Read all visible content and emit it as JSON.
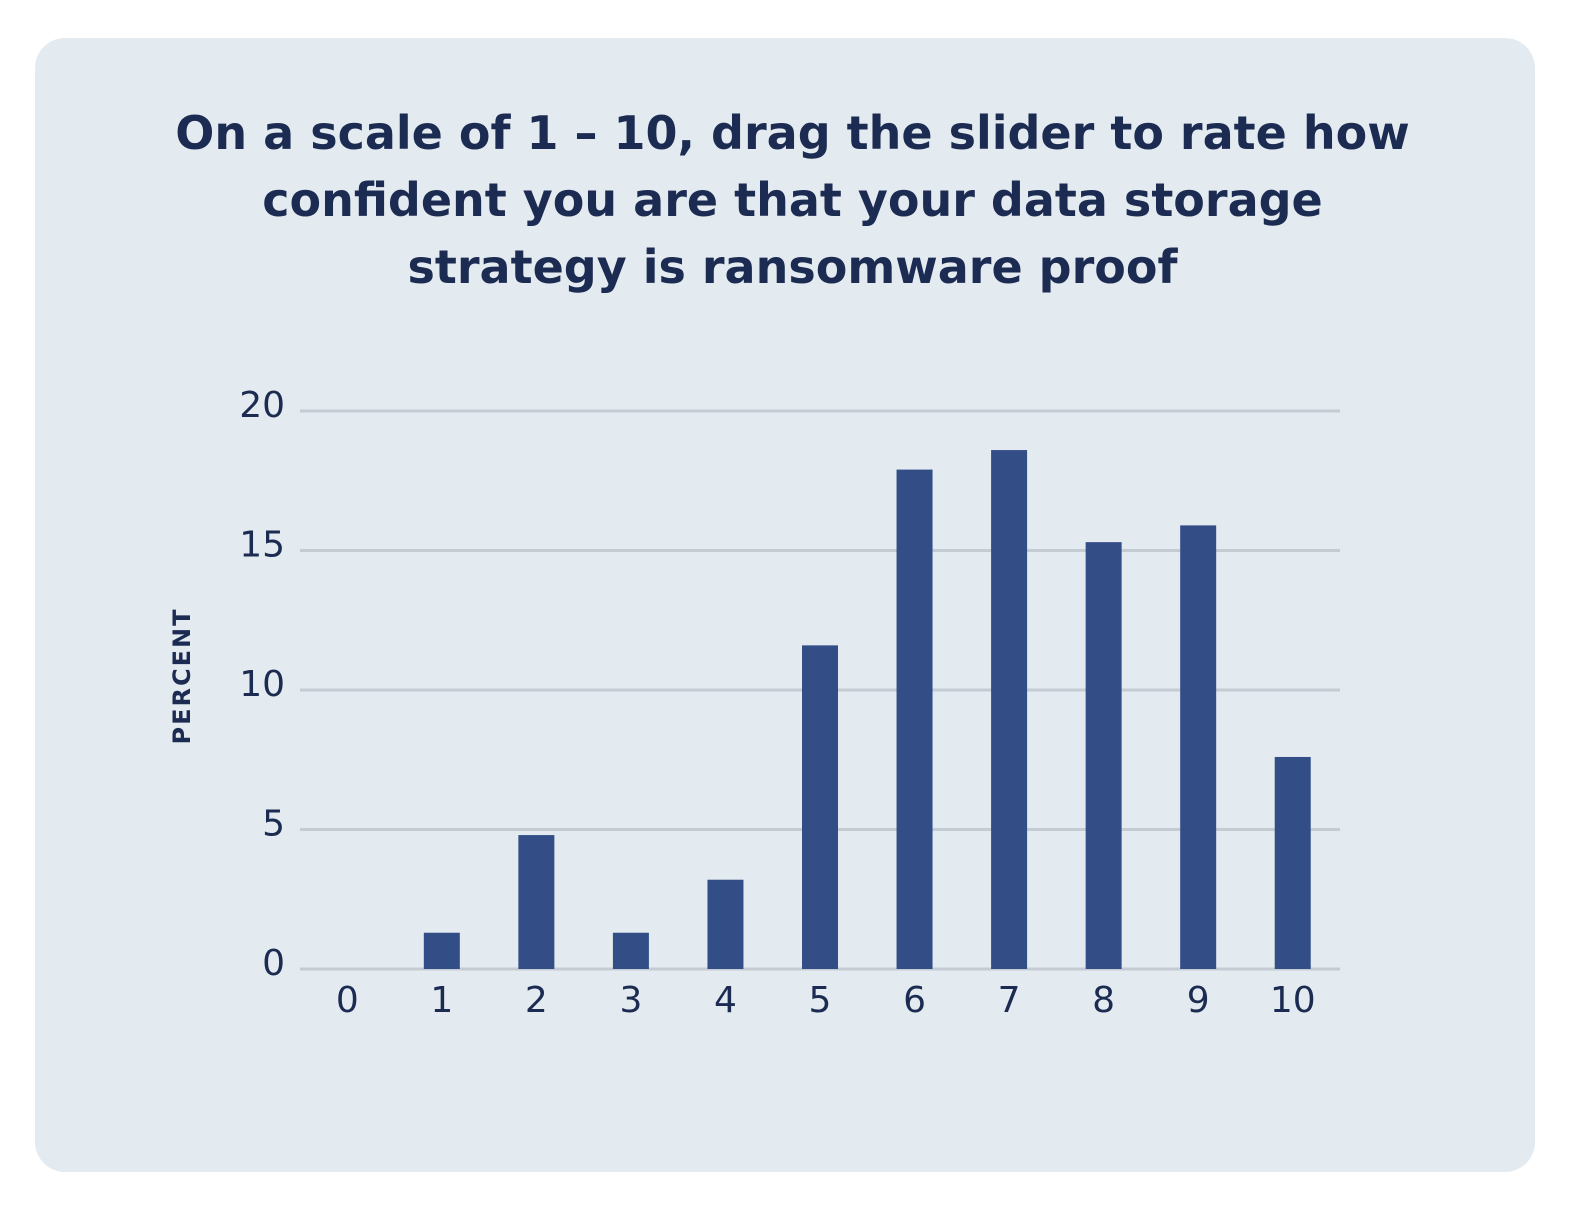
{
  "chart_data": {
    "type": "bar",
    "title": "On a scale of 1 – 10, drag the slider to rate how confident you are that your data storage strategy is ransomware proof",
    "y_label": "PERCENT",
    "categories": [
      "0",
      "1",
      "2",
      "3",
      "4",
      "5",
      "6",
      "7",
      "8",
      "9",
      "10"
    ],
    "values": [
      0,
      1.3,
      4.8,
      1.3,
      3.2,
      11.6,
      17.9,
      18.6,
      15.3,
      15.9,
      7.6
    ],
    "color": "#334e86",
    "ylim": [
      0,
      20
    ],
    "yticks": [
      0,
      5,
      10,
      15,
      20
    ],
    "grid": true
  }
}
